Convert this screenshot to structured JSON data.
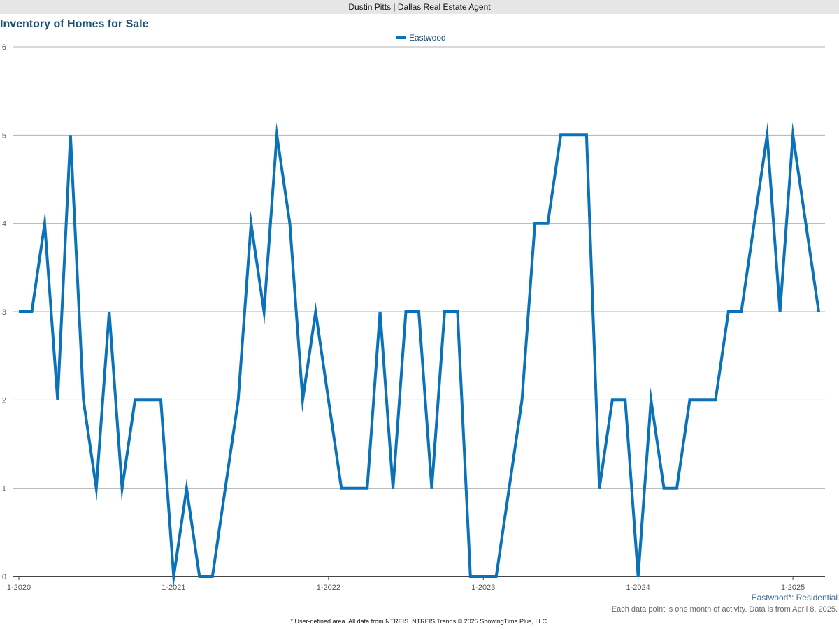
{
  "header": {
    "agent": "Dustin Pitts | Dallas Real Estate Agent"
  },
  "chart_data": {
    "type": "line",
    "title": "Inventory of Homes for Sale",
    "xlabel": "",
    "ylabel": "",
    "ylim": [
      0,
      6
    ],
    "yticks": [
      "0",
      "1",
      "2",
      "3",
      "4",
      "5",
      "6"
    ],
    "xticks": [
      "1-2020",
      "1-2021",
      "1-2022",
      "1-2023",
      "1-2024",
      "1-2025"
    ],
    "x_start": "2020-01",
    "x_end": "2025-03",
    "grid": true,
    "legend_position": "top-center",
    "series": [
      {
        "name": "Eastwood",
        "color": "#0a72b8",
        "values": [
          3,
          3,
          4,
          2,
          5,
          2,
          1,
          3,
          1,
          2,
          2,
          2,
          0,
          1,
          0,
          0,
          1,
          2,
          4,
          3,
          5,
          4,
          2,
          3,
          2,
          1,
          1,
          1,
          3,
          1,
          3,
          3,
          1,
          3,
          3,
          0,
          0,
          0,
          1,
          2,
          4,
          4,
          5,
          5,
          5,
          1,
          2,
          2,
          0,
          2,
          1,
          1,
          2,
          2,
          2,
          3,
          3,
          4,
          5,
          3,
          5,
          4,
          3
        ]
      }
    ]
  },
  "notes": {
    "series_label": "Eastwood*: Residential",
    "data_note": "Each data point is one month of activity. Data is from April 8, 2025.",
    "footer": "* User-defined area. All data from NTREIS. NTREIS Trends © 2025 ShowingTime Plus, LLC."
  }
}
